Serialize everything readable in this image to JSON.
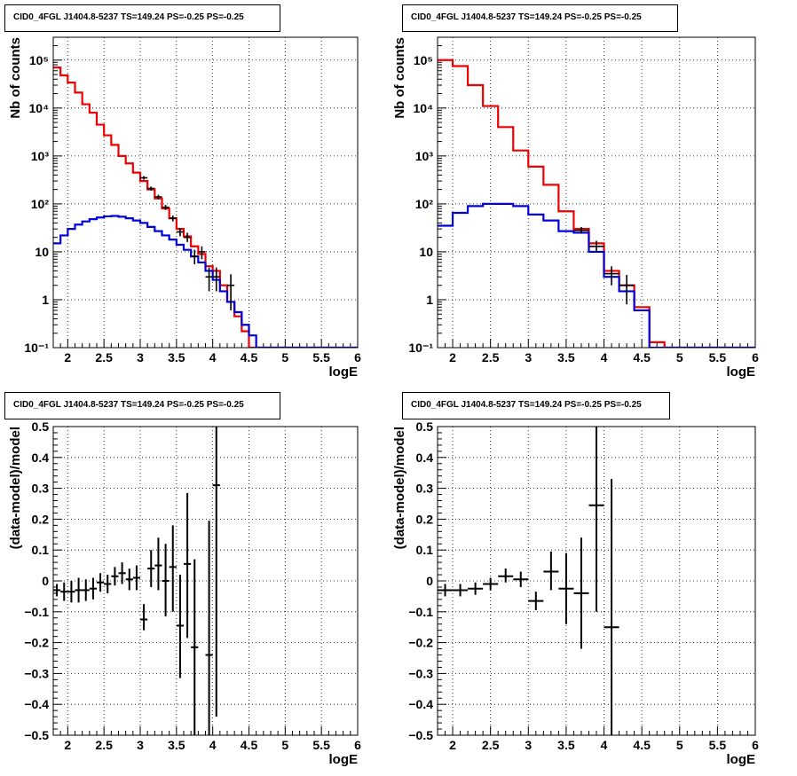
{
  "chart_data": [
    {
      "type": "histogram",
      "title": "CID0_4FGL J1404.8-5237 TS=149.24 PS=-0.25 PS=-0.25",
      "xlabel": "logE",
      "ylabel": "Nb of counts",
      "xlim": [
        1.8,
        6.0
      ],
      "ylim": [
        0.1,
        300000
      ],
      "yscale": "log",
      "grid": true,
      "x_ticks": [
        "2",
        "2.5",
        "3",
        "3.5",
        "4",
        "4.5",
        "5",
        "5.5",
        "6"
      ],
      "y_ticks": [
        "10⁻¹",
        "1",
        "10",
        "10²",
        "10³",
        "10⁴",
        "10⁵"
      ],
      "bin_edges": [
        1.8,
        1.9,
        2.0,
        2.1,
        2.2,
        2.3,
        2.4,
        2.5,
        2.6,
        2.7,
        2.8,
        2.9,
        3.0,
        3.1,
        3.2,
        3.3,
        3.4,
        3.5,
        3.6,
        3.7,
        3.8,
        3.9,
        4.0,
        4.1,
        4.2,
        4.3,
        4.4,
        4.5,
        4.6,
        4.7,
        4.8,
        4.9,
        5.0,
        5.1,
        5.2,
        5.3,
        5.4,
        5.5,
        5.6,
        5.7,
        5.8,
        5.9,
        6.0
      ],
      "series": [
        {
          "name": "",
          "style": "step",
          "color": "#ee0000",
          "values": [
            70000,
            48000,
            34000,
            21000,
            12000,
            8000,
            4500,
            2700,
            1700,
            1000,
            700,
            450,
            300,
            200,
            130,
            80,
            50,
            30,
            21,
            13,
            9,
            5,
            4,
            2,
            0.9,
            0.45,
            0.22,
            0.1,
            0.1,
            0.1,
            0.1,
            0.1,
            0.1,
            0.1,
            0.1,
            0.1,
            0.1,
            0.1,
            0.1,
            0.1,
            0.1,
            0.1
          ]
        },
        {
          "name": "",
          "style": "step",
          "color": "#0000dd",
          "values": [
            15,
            22,
            30,
            37,
            43,
            48,
            52,
            55,
            56,
            54,
            50,
            45,
            40,
            33,
            27,
            22,
            18,
            14,
            11,
            8,
            6,
            4,
            2.6,
            1.5,
            0.9,
            0.55,
            0.3,
            0.18,
            0.1,
            0.1,
            0.1,
            0.1,
            0.1,
            0.1,
            0.1,
            0.1,
            0.1,
            0.1,
            0.1,
            0.1,
            0.1,
            0.1
          ]
        },
        {
          "name": "",
          "style": "errorbar",
          "color": "#000000",
          "points": [
            {
              "x": 3.05,
              "y": 350,
              "lo": 320,
              "hi": 380
            },
            {
              "x": 3.15,
              "y": 210,
              "lo": 190,
              "hi": 230
            },
            {
              "x": 3.25,
              "y": 140,
              "lo": 125,
              "hi": 155
            },
            {
              "x": 3.35,
              "y": 85,
              "lo": 75,
              "hi": 95
            },
            {
              "x": 3.45,
              "y": 50,
              "lo": 43,
              "hi": 57
            },
            {
              "x": 3.55,
              "y": 26,
              "lo": 21,
              "hi": 31
            },
            {
              "x": 3.65,
              "y": 20,
              "lo": 16,
              "hi": 25
            },
            {
              "x": 3.75,
              "y": 8,
              "lo": 5.5,
              "hi": 11
            },
            {
              "x": 3.85,
              "y": 10,
              "lo": 7,
              "hi": 13
            },
            {
              "x": 3.95,
              "y": 3,
              "lo": 1.5,
              "hi": 4.7
            },
            {
              "x": 4.05,
              "y": 3,
              "lo": 1.5,
              "hi": 4.7
            },
            {
              "x": 4.25,
              "y": 2,
              "lo": 0.6,
              "hi": 3.4
            }
          ]
        }
      ]
    },
    {
      "type": "histogram",
      "title": "CID0_4FGL J1404.8-5237 TS=149.24 PS=-0.25 PS=-0.25",
      "xlabel": "logE",
      "ylabel": "Nb of counts",
      "xlim": [
        1.8,
        6.0
      ],
      "ylim": [
        0.1,
        300000
      ],
      "yscale": "log",
      "grid": true,
      "x_ticks": [
        "2",
        "2.5",
        "3",
        "3.5",
        "4",
        "4.5",
        "5",
        "5.5",
        "6"
      ],
      "y_ticks": [
        "10⁻¹",
        "1",
        "10",
        "10²",
        "10³",
        "10⁴",
        "10⁵"
      ],
      "bin_edges": [
        1.8,
        2.0,
        2.2,
        2.4,
        2.6,
        2.8,
        3.0,
        3.2,
        3.4,
        3.6,
        3.8,
        4.0,
        4.2,
        4.4,
        4.6,
        4.8,
        5.0,
        5.2,
        5.4,
        5.6,
        5.8,
        6.0
      ],
      "series": [
        {
          "name": "",
          "style": "step",
          "color": "#ee0000",
          "values": [
            100000,
            75000,
            30000,
            11000,
            4000,
            1300,
            600,
            250,
            70,
            30,
            15,
            4,
            2,
            0.7,
            0.13,
            0.1,
            0.1,
            0.1,
            0.1,
            0.1,
            0.1
          ]
        },
        {
          "name": "",
          "style": "step",
          "color": "#0000dd",
          "values": [
            35,
            65,
            90,
            100,
            100,
            90,
            60,
            45,
            27,
            25,
            10,
            3,
            1.5,
            0.6,
            0.1,
            0.1,
            0.1,
            0.1,
            0.1,
            0.1,
            0.1
          ]
        },
        {
          "name": "",
          "style": "errorbar",
          "color": "#000000",
          "points": [
            {
              "x": 3.7,
              "y": 28,
              "lo": 24,
              "hi": 33
            },
            {
              "x": 3.9,
              "y": 13,
              "lo": 10,
              "hi": 17
            },
            {
              "x": 4.1,
              "y": 3.5,
              "lo": 2,
              "hi": 5
            },
            {
              "x": 4.3,
              "y": 2,
              "lo": 0.8,
              "hi": 3.3
            }
          ]
        }
      ]
    },
    {
      "type": "scatter",
      "title": "CID0_4FGL J1404.8-5237 TS=149.24 PS=-0.25 PS=-0.25",
      "xlabel": "logE",
      "ylabel": "(data-model)/model",
      "xlim": [
        1.8,
        6.0
      ],
      "ylim": [
        -0.5,
        0.5
      ],
      "grid": true,
      "x_ticks": [
        "2",
        "2.5",
        "3",
        "3.5",
        "4",
        "4.5",
        "5",
        "5.5",
        "6"
      ],
      "y_ticks": [
        "−0.5",
        "−0.4",
        "−0.3",
        "−0.2",
        "−0.1",
        "0",
        "0.1",
        "0.2",
        "0.3",
        "0.4",
        "0.5"
      ],
      "xerr": 0.05,
      "points": [
        {
          "x": 1.85,
          "y": -0.03,
          "lo": -0.05,
          "hi": -0.01
        },
        {
          "x": 1.95,
          "y": -0.035,
          "lo": -0.065,
          "hi": -0.005
        },
        {
          "x": 2.05,
          "y": -0.035,
          "lo": -0.07,
          "hi": 0.0
        },
        {
          "x": 2.15,
          "y": -0.03,
          "lo": -0.07,
          "hi": 0.01
        },
        {
          "x": 2.25,
          "y": -0.03,
          "lo": -0.065,
          "hi": 0.005
        },
        {
          "x": 2.35,
          "y": -0.025,
          "lo": -0.06,
          "hi": 0.01
        },
        {
          "x": 2.45,
          "y": -0.005,
          "lo": -0.035,
          "hi": 0.025
        },
        {
          "x": 2.55,
          "y": -0.01,
          "lo": -0.04,
          "hi": 0.02
        },
        {
          "x": 2.65,
          "y": 0.015,
          "lo": -0.015,
          "hi": 0.045
        },
        {
          "x": 2.75,
          "y": 0.025,
          "lo": -0.01,
          "hi": 0.06
        },
        {
          "x": 2.85,
          "y": 0.005,
          "lo": -0.03,
          "hi": 0.04
        },
        {
          "x": 2.95,
          "y": 0.01,
          "lo": -0.03,
          "hi": 0.05
        },
        {
          "x": 3.05,
          "y": -0.125,
          "lo": -0.16,
          "hi": -0.075
        },
        {
          "x": 3.15,
          "y": 0.04,
          "lo": -0.02,
          "hi": 0.1
        },
        {
          "x": 3.25,
          "y": 0.05,
          "lo": -0.03,
          "hi": 0.14
        },
        {
          "x": 3.35,
          "y": 0.0,
          "lo": -0.115,
          "hi": 0.12
        },
        {
          "x": 3.45,
          "y": 0.045,
          "lo": -0.1,
          "hi": 0.18
        },
        {
          "x": 3.55,
          "y": -0.145,
          "lo": -0.315,
          "hi": 0.02
        },
        {
          "x": 3.65,
          "y": 0.055,
          "lo": -0.185,
          "hi": 0.285
        },
        {
          "x": 3.75,
          "y": -0.215,
          "lo": -0.5,
          "hi": 0.07
        },
        {
          "x": 3.95,
          "y": -0.24,
          "lo": -0.5,
          "hi": 0.195
        },
        {
          "x": 4.05,
          "y": 0.31,
          "lo": -0.44,
          "hi": 0.5
        }
      ]
    },
    {
      "type": "scatter",
      "title": "CID0_4FGL J1404.8-5237 TS=149.24 PS=-0.25 PS=-0.25",
      "xlabel": "logE",
      "ylabel": "(data-model)/model",
      "xlim": [
        1.8,
        6.0
      ],
      "ylim": [
        -0.5,
        0.5
      ],
      "grid": true,
      "x_ticks": [
        "2",
        "2.5",
        "3",
        "3.5",
        "4",
        "4.5",
        "5",
        "5.5",
        "6"
      ],
      "y_ticks": [
        "−0.5",
        "−0.4",
        "−0.3",
        "−0.2",
        "−0.1",
        "0",
        "0.1",
        "0.2",
        "0.3",
        "0.4",
        "0.5"
      ],
      "xerr": 0.1,
      "points": [
        {
          "x": 1.9,
          "y": -0.03,
          "lo": -0.05,
          "hi": -0.01
        },
        {
          "x": 2.1,
          "y": -0.03,
          "lo": -0.05,
          "hi": -0.01
        },
        {
          "x": 2.3,
          "y": -0.025,
          "lo": -0.045,
          "hi": -0.005
        },
        {
          "x": 2.5,
          "y": -0.01,
          "lo": -0.03,
          "hi": 0.01
        },
        {
          "x": 2.7,
          "y": 0.015,
          "lo": -0.005,
          "hi": 0.04
        },
        {
          "x": 2.9,
          "y": 0.005,
          "lo": -0.02,
          "hi": 0.03
        },
        {
          "x": 3.1,
          "y": -0.065,
          "lo": -0.095,
          "hi": -0.035
        },
        {
          "x": 3.3,
          "y": 0.03,
          "lo": -0.03,
          "hi": 0.095
        },
        {
          "x": 3.5,
          "y": -0.025,
          "lo": -0.14,
          "hi": 0.09
        },
        {
          "x": 3.7,
          "y": -0.04,
          "lo": -0.22,
          "hi": 0.14
        },
        {
          "x": 3.9,
          "y": 0.245,
          "lo": -0.1,
          "hi": 0.5
        },
        {
          "x": 4.1,
          "y": -0.15,
          "lo": -0.5,
          "hi": 0.33
        }
      ]
    }
  ]
}
